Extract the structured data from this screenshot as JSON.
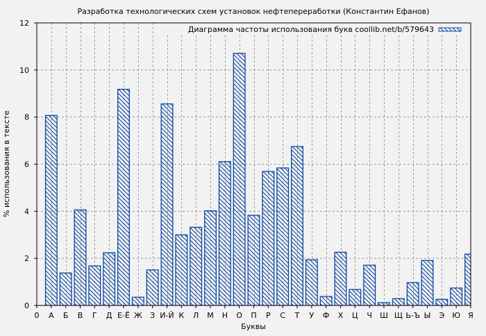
{
  "colors": {
    "background": "#f2f2f2",
    "bar_edge": "#0d47a1",
    "hatch": "#0d47a1",
    "grid": "#999999",
    "axis": "#000000"
  },
  "chart_data": {
    "type": "bar",
    "title": "Разработка технологических схем установок нефтепереработки (Константин Ефанов)",
    "xlabel": "Буквы",
    "ylabel": "% использования в тексте",
    "ylim": [
      0,
      12
    ],
    "yticks": [
      0,
      2,
      4,
      6,
      8,
      10,
      12
    ],
    "xlim": [
      0,
      30
    ],
    "xtick_labels": [
      "0",
      "А",
      "Б",
      "В",
      "Г",
      "Д",
      "Е-Ё",
      "Ж",
      "З",
      "И-Й",
      "К",
      "Л",
      "М",
      "Н",
      "О",
      "П",
      "Р",
      "С",
      "Т",
      "У",
      "Ф",
      "Х",
      "Ц",
      "Ч",
      "Ш",
      "Щ",
      "Ь-Ъ",
      "Ы",
      "Э",
      "Ю",
      "Я"
    ],
    "grid": true,
    "legend_position": "upper right",
    "series": [
      {
        "name": "Диаграмма частоты использования букв coollib.net/b/579643",
        "hatch": "\\\\",
        "categories": [
          "А",
          "Б",
          "В",
          "Г",
          "Д",
          "Е-Ё",
          "Ж",
          "З",
          "И-Й",
          "К",
          "Л",
          "М",
          "Н",
          "О",
          "П",
          "Р",
          "С",
          "Т",
          "У",
          "Ф",
          "Х",
          "Ц",
          "Ч",
          "Ш",
          "Щ",
          "Ь-Ъ",
          "Ы",
          "Э",
          "Ю",
          "Я"
        ],
        "values": [
          8.07,
          1.38,
          4.06,
          1.68,
          2.24,
          9.18,
          0.35,
          1.51,
          8.56,
          3.0,
          3.32,
          4.02,
          6.11,
          10.71,
          3.83,
          5.69,
          5.84,
          6.75,
          1.94,
          0.38,
          2.26,
          0.68,
          1.71,
          0.12,
          0.29,
          0.97,
          1.91,
          0.26,
          0.74,
          2.18
        ]
      }
    ]
  }
}
